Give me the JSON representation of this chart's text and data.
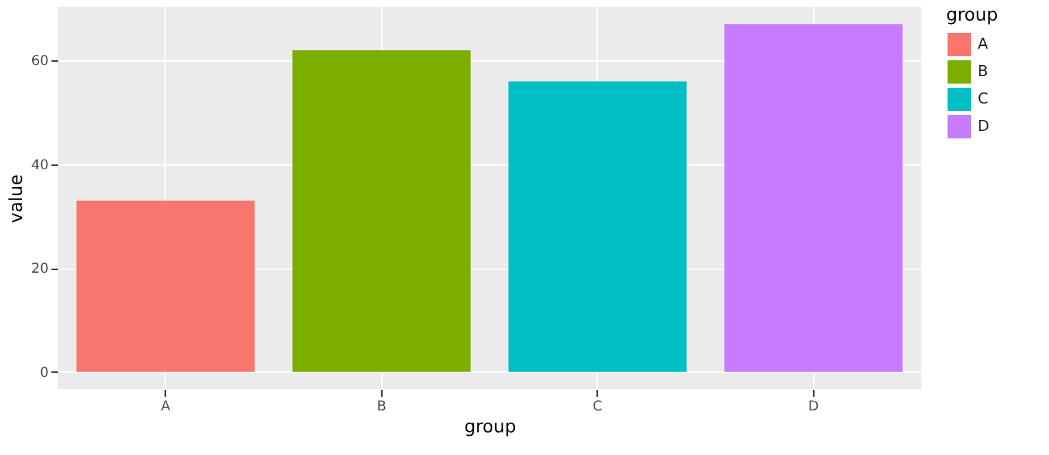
{
  "chart_data": {
    "type": "bar",
    "xlabel": "group",
    "ylabel": "value",
    "legend_title": "group",
    "categories": [
      "A",
      "B",
      "C",
      "D"
    ],
    "series": [
      {
        "name": "A",
        "color": "#f8766d",
        "values": [
          33,
          null,
          null,
          null
        ]
      },
      {
        "name": "B",
        "color": "#7cae00",
        "values": [
          null,
          62,
          null,
          null
        ]
      },
      {
        "name": "C",
        "color": "#00bfc4",
        "values": [
          null,
          null,
          56,
          null
        ]
      },
      {
        "name": "D",
        "color": "#c77cff",
        "values": [
          null,
          null,
          null,
          67
        ]
      }
    ],
    "ylim": [
      -3.35,
      70.35
    ],
    "yticks": [
      0,
      20,
      40,
      60
    ],
    "grid": true,
    "legend": "right"
  }
}
